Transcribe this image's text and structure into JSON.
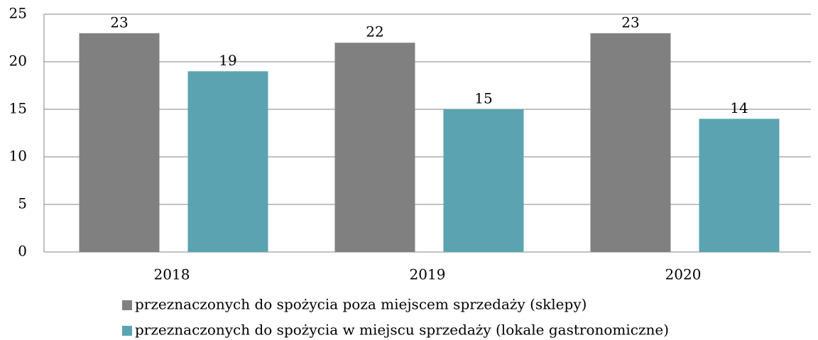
{
  "chart_data": {
    "type": "bar",
    "categories": [
      "2018",
      "2019",
      "2020"
    ],
    "series": [
      {
        "name": "przeznaczonych do spożycia poza miejscem sprzedaży (sklepy)",
        "color": "#808080",
        "values": [
          23,
          22,
          23
        ]
      },
      {
        "name": "przeznaczonych do spożycia w miejscu sprzedaży (lokale gastronomiczne)",
        "color": "#5ba3b0",
        "values": [
          19,
          15,
          14
        ]
      }
    ],
    "ylim": [
      0,
      25
    ],
    "yticks": [
      0,
      5,
      10,
      15,
      20,
      25
    ],
    "grid": true,
    "legend": "bottom"
  }
}
